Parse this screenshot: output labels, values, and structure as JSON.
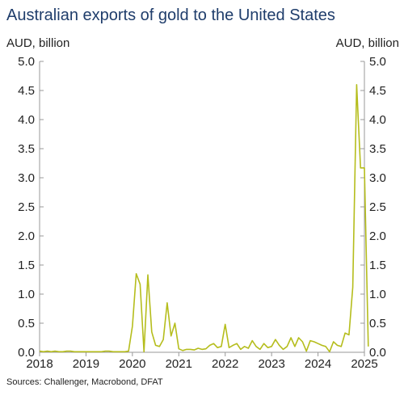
{
  "chart_data": {
    "type": "line",
    "title": "Australian exports of gold to the United States",
    "ylabel_left": "AUD, billion",
    "ylabel_right": "AUD, billion",
    "source": "Sources: Challenger, Macrobond, DFAT",
    "xlim": [
      2018,
      2025
    ],
    "ylim": [
      0,
      5
    ],
    "x_ticks": [
      "2018",
      "2019",
      "2020",
      "2021",
      "2022",
      "2023",
      "2024",
      "2025"
    ],
    "y_ticks": [
      "0.0",
      "0.5",
      "1.0",
      "1.5",
      "2.0",
      "2.5",
      "3.0",
      "3.5",
      "4.0",
      "4.5",
      "5.0"
    ],
    "grid": false,
    "line_color": "#b5bd1c",
    "series": [
      {
        "start": "2018-01",
        "frequency": "monthly",
        "values": [
          0.02,
          0.01,
          0.02,
          0.01,
          0.02,
          0.01,
          0.01,
          0.02,
          0.02,
          0.01,
          0.01,
          0.01,
          0.01,
          0.01,
          0.01,
          0.01,
          0.01,
          0.02,
          0.02,
          0.01,
          0.01,
          0.01,
          0.01,
          0.02,
          0.45,
          1.35,
          1.17,
          0.01,
          1.33,
          0.35,
          0.12,
          0.1,
          0.22,
          0.85,
          0.28,
          0.5,
          0.06,
          0.03,
          0.05,
          0.05,
          0.04,
          0.07,
          0.05,
          0.06,
          0.12,
          0.15,
          0.08,
          0.1,
          0.48,
          0.08,
          0.12,
          0.15,
          0.05,
          0.1,
          0.07,
          0.2,
          0.1,
          0.05,
          0.15,
          0.08,
          0.1,
          0.22,
          0.12,
          0.05,
          0.1,
          0.25,
          0.1,
          0.25,
          0.18,
          0.02,
          0.2,
          0.18,
          0.15,
          0.12,
          0.1,
          0.01,
          0.18,
          0.12,
          0.1,
          0.33,
          0.3,
          1.12,
          4.6,
          3.17,
          3.17,
          0.1
        ]
      }
    ]
  }
}
